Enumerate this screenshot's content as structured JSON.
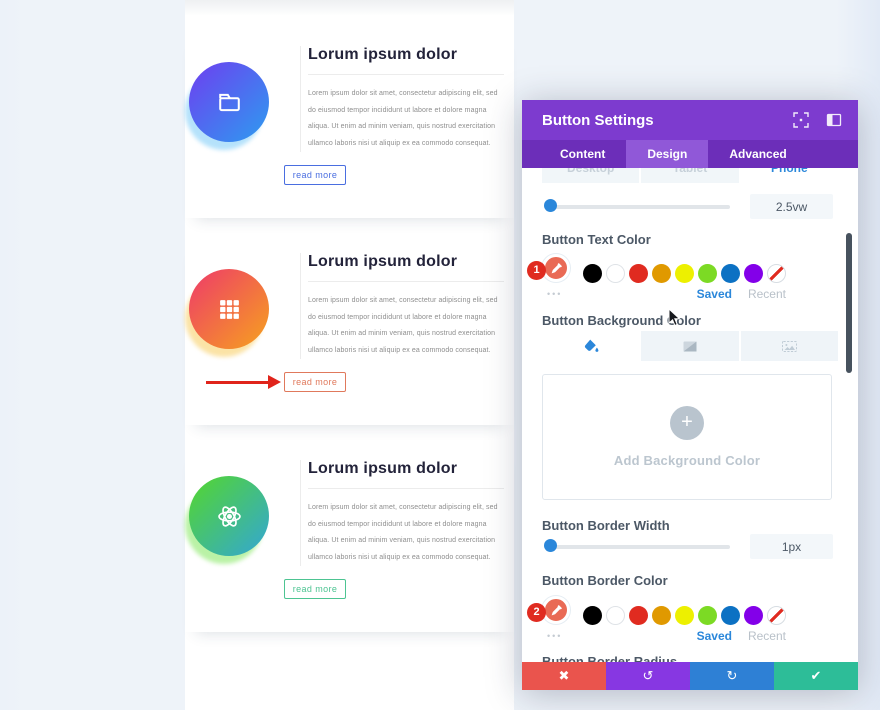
{
  "page": {
    "cards": [
      {
        "title": "Lorum ipsum dolor",
        "body": "Lorem ipsum dolor sit amet, consectetur adipiscing elit, sed do eiusmod tempor incididunt ut labore et dolore magna aliqua. Ut enim ad minim veniam, quis nostrud exercitation ullamco laboris nisi ut aliquip ex ea commodo consequat.",
        "button_label": "read more",
        "icon": "folder-icon",
        "accent": "#4a6ee0",
        "gradient_from": "#6e3ef0",
        "gradient_to": "#2d9cf0",
        "halo": "#b5e2fb"
      },
      {
        "title": "Lorum ipsum dolor",
        "body": "Lorem ipsum dolor sit amet, consectetur adipiscing elit, sed do eiusmod tempor incididunt ut labore et dolore magna aliqua. Ut enim ad minim veniam, quis nostrud exercitation ullamco laboris nisi ut aliquip ex ea commodo consequat.",
        "button_label": "read more",
        "icon": "grid-icon",
        "accent": "#e0795c",
        "gradient_from": "#ee3a6a",
        "gradient_to": "#f6a21e",
        "halo": "#fbe3a6"
      },
      {
        "title": "Lorum ipsum dolor",
        "body": "Lorem ipsum dolor sit amet, consectetur adipiscing elit, sed do eiusmod tempor incididunt ut labore et dolore magna aliqua. Ut enim ad minim veniam, quis nostrud exercitation ullamco laboris nisi ut aliquip ex ea commodo consequat.",
        "button_label": "read more",
        "icon": "atom-icon",
        "accent": "#4dc492",
        "gradient_from": "#54d72b",
        "gradient_to": "#33a6d6",
        "halo": "#baf2a6"
      }
    ],
    "annotations": {
      "arrow_color": "#e0241b",
      "step_1": "1",
      "step_2": "2"
    }
  },
  "panel": {
    "title": "Button Settings",
    "tabs": [
      {
        "label": "Content"
      },
      {
        "label": "Design"
      },
      {
        "label": "Advanced"
      }
    ],
    "device_tabs": [
      {
        "label": "Desktop"
      },
      {
        "label": "Tablet"
      },
      {
        "label": "Phone"
      }
    ],
    "text_size_value": "2.5vw",
    "labels": {
      "text_color": "Button Text Color",
      "background_color": "Button Background Color",
      "add_background": "Add Background Color",
      "border_width": "Button Border Width",
      "border_color": "Button Border Color",
      "border_radius": "Button Border Radius"
    },
    "border_width_value": "1px",
    "swatches": [
      "#000000",
      "#FFFFFF",
      "#E02B20",
      "#E09900",
      "#EDF000",
      "#7CDA24",
      "#0C71C3",
      "#8300E9"
    ],
    "links": {
      "saved": "Saved",
      "recent": "Recent",
      "more": "•••"
    },
    "accent_blue": "#2b87da",
    "footer": [
      {
        "name": "discard",
        "icon": "✖",
        "color": "#ea544d"
      },
      {
        "name": "undo",
        "icon": "↺",
        "color": "#8737e2"
      },
      {
        "name": "redo",
        "icon": "↻",
        "color": "#2e80d5"
      },
      {
        "name": "save",
        "icon": "✔",
        "color": "#2dbd98"
      }
    ]
  }
}
